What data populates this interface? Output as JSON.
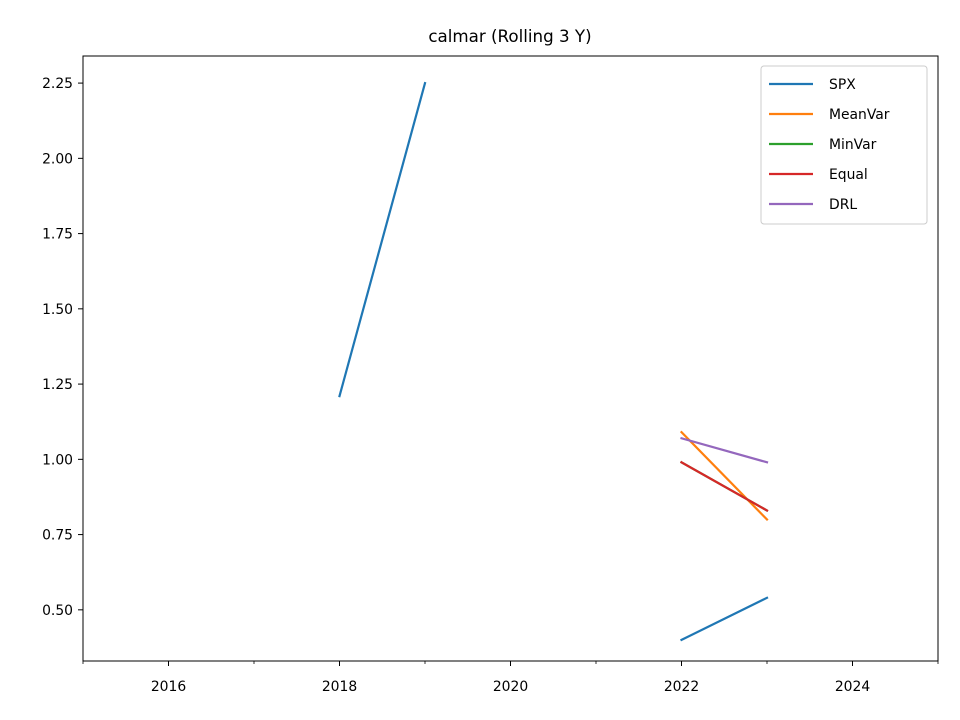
{
  "chart_data": {
    "type": "line",
    "title": "calmar (Rolling 3 Y)",
    "xlabel": "",
    "ylabel": "",
    "xlim": [
      2015.0,
      2025.0
    ],
    "ylim": [
      0.33,
      2.34
    ],
    "x_ticks": [
      2016,
      2018,
      2020,
      2022,
      2024
    ],
    "x_minor_ticks": [
      2015,
      2017,
      2019,
      2021,
      2023,
      2025
    ],
    "y_ticks": [
      "0.50",
      "0.75",
      "1.00",
      "1.25",
      "1.50",
      "1.75",
      "2.00",
      "2.25"
    ],
    "grid": false,
    "legend_position": "top-right",
    "series": [
      {
        "name": "SPX",
        "color": "#1f77b4",
        "segments": [
          [
            [
              2018,
              1.21
            ],
            [
              2019,
              2.25
            ]
          ],
          [
            [
              2022,
              0.4
            ],
            [
              2023,
              0.54
            ]
          ]
        ]
      },
      {
        "name": "MeanVar",
        "color": "#ff7f0e",
        "segments": [
          [
            [
              2022,
              1.09
            ],
            [
              2023,
              0.8
            ]
          ]
        ]
      },
      {
        "name": "MinVar",
        "color": "#2ca02c",
        "segments": [
          [
            [
              2022,
              0.99
            ],
            [
              2023,
              0.83
            ]
          ]
        ]
      },
      {
        "name": "Equal",
        "color": "#d62728",
        "segments": [
          [
            [
              2022,
              0.99
            ],
            [
              2023,
              0.83
            ]
          ]
        ]
      },
      {
        "name": "DRL",
        "color": "#9467bd",
        "segments": [
          [
            [
              2022,
              1.07
            ],
            [
              2023,
              0.99
            ]
          ]
        ]
      }
    ]
  }
}
